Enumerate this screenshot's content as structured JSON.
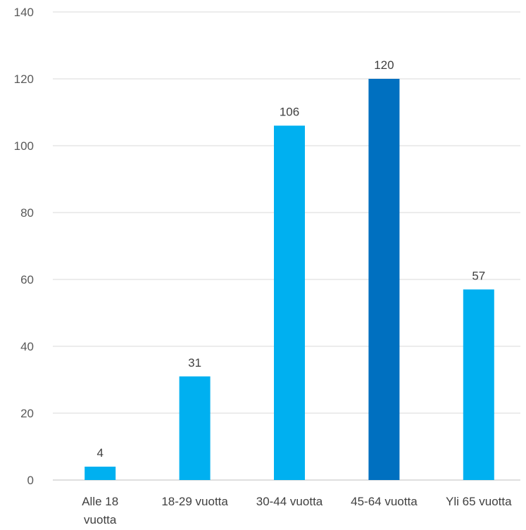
{
  "chart_data": {
    "type": "bar",
    "title": "",
    "xlabel": "",
    "ylabel": "",
    "categories": [
      [
        "Alle 18",
        "vuotta"
      ],
      [
        "18-29 vuotta"
      ],
      [
        "30-44 vuotta"
      ],
      [
        "45-64 vuotta"
      ],
      [
        "Yli 65 vuotta"
      ]
    ],
    "values": [
      4,
      31,
      106,
      120,
      57
    ],
    "data_labels": [
      "4",
      "31",
      "106",
      "120",
      "57"
    ],
    "ylim": [
      0,
      140
    ],
    "yticks": [
      0,
      20,
      40,
      60,
      80,
      100,
      120,
      140
    ],
    "ytick_labels": [
      "0",
      "20",
      "40",
      "60",
      "80",
      "100",
      "120",
      "140"
    ],
    "grid": true,
    "legend": "none",
    "colors": {
      "default_bar": "#00b0f0",
      "highlight_bar": "#0070c0",
      "highlight_index": 3
    }
  }
}
